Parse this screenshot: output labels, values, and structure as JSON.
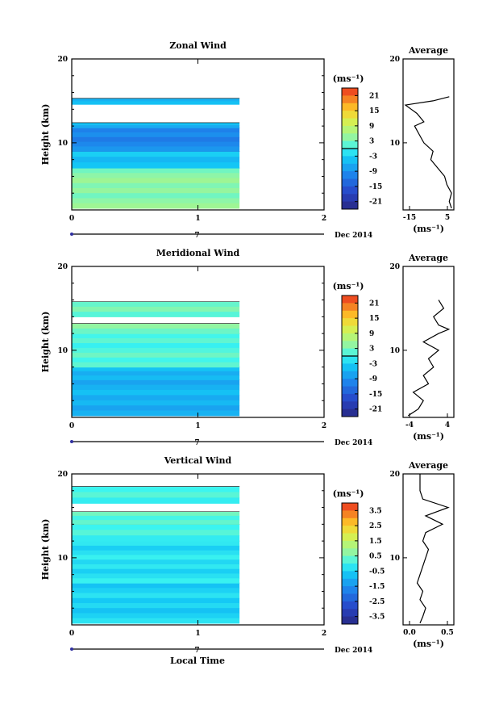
{
  "figure": {
    "local_time_label": "Local Time",
    "month_label": "Dec 2014"
  },
  "chart_data": [
    {
      "type": "heatmap",
      "panel": "zonal",
      "title": "Zonal Wind",
      "ylabel": "Height (km)",
      "xlim": [
        0,
        2
      ],
      "ylim": [
        2,
        20
      ],
      "x_ticks": [
        "0",
        "1",
        "2"
      ],
      "y_ticks": [
        "10",
        "20"
      ],
      "date_tick": "7",
      "date_label": "Dec 2014",
      "colorbar": {
        "unit": "(ms⁻¹)",
        "ticks": [
          "21",
          "15",
          "9",
          "3",
          "-3",
          "-9",
          "-15",
          "-21"
        ],
        "vmin": -24,
        "vmax": 24,
        "zero_line": 0
      },
      "time_coverage": [
        0,
        1.33
      ],
      "layers": [
        {
          "h0": 2.2,
          "h1": 7.0,
          "v": 4
        },
        {
          "h0": 7.0,
          "h1": 9.0,
          "v": -4
        },
        {
          "h0": 9.0,
          "h1": 11.8,
          "v": -10
        },
        {
          "h0": 11.8,
          "h1": 12.4,
          "v": -6
        },
        {
          "h0": 14.6,
          "h1": 15.3,
          "v": -6
        }
      ],
      "average": {
        "title": "Average",
        "xlabel": "(ms⁻¹)",
        "xlim": [
          -15,
          7
        ],
        "x_ticks": [
          "-15",
          "5"
        ],
        "y_ticks": [
          "10",
          "20"
        ],
        "height": [
          2.2,
          3,
          4,
          5,
          6,
          7,
          8,
          9,
          10,
          11,
          12,
          12.5,
          13.5,
          14.5,
          15.0,
          15.5
        ],
        "value": [
          6,
          5,
          6,
          4,
          3,
          0,
          -3,
          -2,
          -6,
          -8,
          -10,
          -6,
          -9,
          -14,
          -2,
          5
        ]
      }
    },
    {
      "type": "heatmap",
      "panel": "meridional",
      "title": "Meridional Wind",
      "ylabel": "Height (km)",
      "xlim": [
        0,
        2
      ],
      "ylim": [
        2,
        20
      ],
      "x_ticks": [
        "0",
        "1",
        "2"
      ],
      "y_ticks": [
        "10",
        "20"
      ],
      "date_tick": "7",
      "date_label": "Dec 2014",
      "colorbar": {
        "unit": "(ms⁻¹)",
        "ticks": [
          "21",
          "15",
          "9",
          "3",
          "-3",
          "-9",
          "-15",
          "-21"
        ],
        "vmin": -24,
        "vmax": 24,
        "zero_line": 0
      },
      "time_coverage": [
        0,
        1.33
      ],
      "layers": [
        {
          "h0": 2.2,
          "h1": 6.5,
          "v": -6
        },
        {
          "h0": 6.5,
          "h1": 8.0,
          "v": -5
        },
        {
          "h0": 8.0,
          "h1": 12.0,
          "v": 1
        },
        {
          "h0": 12.0,
          "h1": 13.2,
          "v": 3
        },
        {
          "h0": 14.0,
          "h1": 15.8,
          "v": 2
        }
      ],
      "average": {
        "title": "Average",
        "xlabel": "(ms⁻¹)",
        "xlim": [
          -5,
          5
        ],
        "x_ticks": [
          "-4",
          "4"
        ],
        "y_ticks": [
          "10",
          "20"
        ],
        "height": [
          2.2,
          3,
          4,
          5,
          6,
          7,
          8,
          9,
          10,
          11,
          12,
          12.5,
          13,
          14,
          15,
          16
        ],
        "value": [
          -4,
          -2,
          -1,
          -3,
          0,
          -1,
          1,
          0,
          2,
          -1,
          2,
          4,
          2,
          1,
          3,
          2
        ]
      }
    },
    {
      "type": "heatmap",
      "panel": "vertical",
      "title": "Vertical Wind",
      "ylabel": "Height (km)",
      "xlabel": "Local Time",
      "xlim": [
        0,
        2
      ],
      "ylim": [
        2,
        20
      ],
      "x_ticks": [
        "0",
        "1",
        "2"
      ],
      "y_ticks": [
        "10",
        "20"
      ],
      "date_tick": "7",
      "date_label": "Dec 2014",
      "colorbar": {
        "unit": "(ms⁻¹)",
        "ticks": [
          "3.5",
          "2.5",
          "1.5",
          "0.5",
          "-0.5",
          "-1.5",
          "-2.5",
          "-3.5"
        ],
        "vmin": -4,
        "vmax": 4,
        "zero_line": null
      },
      "time_coverage": [
        0,
        1.33
      ],
      "layers": [
        {
          "h0": 2.2,
          "h1": 7.0,
          "v": -0.5
        },
        {
          "h0": 7.0,
          "h1": 12.0,
          "v": -0.3
        },
        {
          "h0": 12.0,
          "h1": 14.0,
          "v": 0.1
        },
        {
          "h0": 14.0,
          "h1": 15.5,
          "v": 0.2
        },
        {
          "h0": 16.5,
          "h1": 18.5,
          "v": 0.0
        }
      ],
      "average": {
        "title": "Average",
        "xlabel": "(ms⁻¹)",
        "xlim": [
          -0.3,
          0.6
        ],
        "x_ticks": [
          "0.0",
          "0.5"
        ],
        "y_ticks": [
          "10",
          "20"
        ],
        "height": [
          2.2,
          3,
          4,
          5,
          6,
          7,
          8,
          9,
          10,
          11,
          12,
          13,
          14,
          15,
          16,
          17,
          18,
          19,
          20
        ],
        "value": [
          0.0,
          0.05,
          0.1,
          0.0,
          0.05,
          -0.05,
          0.0,
          0.05,
          0.1,
          0.15,
          0.05,
          0.1,
          0.4,
          0.1,
          0.5,
          0.05,
          0.0,
          0.0,
          0.0
        ]
      }
    }
  ]
}
